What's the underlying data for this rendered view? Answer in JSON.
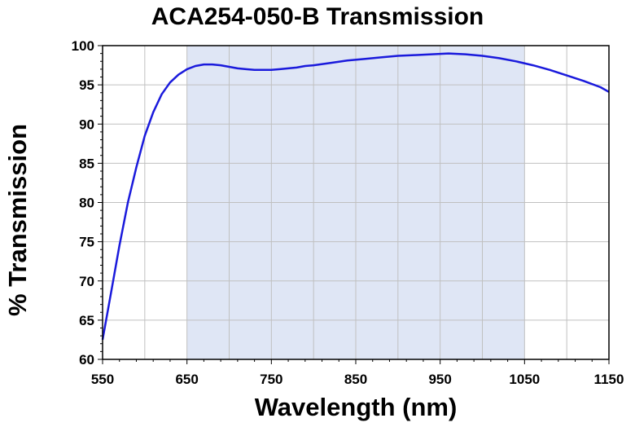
{
  "chart_data": {
    "type": "line",
    "title": "ACA254-050-B Transmission",
    "xlabel": "Wavelength (nm)",
    "ylabel": "% Transmission",
    "xlim": [
      550,
      1150
    ],
    "ylim": [
      60,
      100
    ],
    "x_ticks": [
      550,
      650,
      750,
      850,
      950,
      1050,
      1150
    ],
    "y_ticks": [
      60,
      65,
      70,
      75,
      80,
      85,
      90,
      95,
      100
    ],
    "highlight_band": [
      650,
      1050
    ],
    "grid": true,
    "legend": "none",
    "colors": {
      "line": "#1a1adc",
      "band": "#dfe6f5",
      "grid": "#c0c0c0",
      "axis": "#000000"
    },
    "series": [
      {
        "x": [
          550,
          560,
          570,
          580,
          590,
          600,
          610,
          620,
          630,
          640,
          650,
          660,
          670,
          680,
          690,
          700,
          710,
          720,
          730,
          740,
          750,
          760,
          770,
          780,
          790,
          800,
          820,
          840,
          860,
          880,
          900,
          920,
          940,
          960,
          980,
          1000,
          1020,
          1040,
          1060,
          1080,
          1100,
          1120,
          1140,
          1150
        ],
        "y": [
          62.5,
          68.5,
          74.5,
          80.0,
          84.5,
          88.5,
          91.5,
          93.8,
          95.3,
          96.3,
          97.0,
          97.4,
          97.6,
          97.6,
          97.5,
          97.3,
          97.1,
          97.0,
          96.9,
          96.9,
          96.9,
          97.0,
          97.1,
          97.2,
          97.4,
          97.5,
          97.8,
          98.1,
          98.3,
          98.5,
          98.7,
          98.8,
          98.9,
          99.0,
          98.9,
          98.7,
          98.4,
          98.0,
          97.5,
          96.9,
          96.2,
          95.5,
          94.7,
          94.1
        ]
      }
    ]
  }
}
